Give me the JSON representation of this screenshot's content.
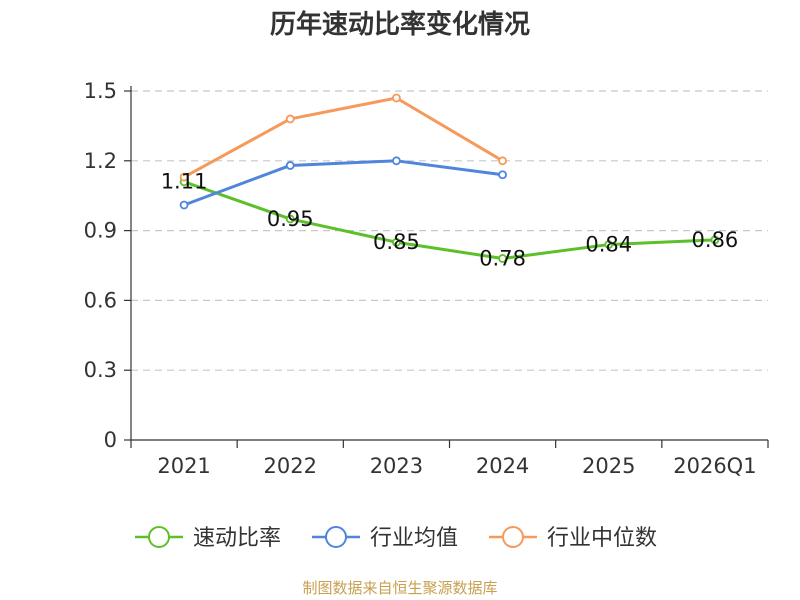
{
  "chart_data": {
    "type": "line",
    "title": "历年速动比率变化情况",
    "categories": [
      "2021",
      "2022",
      "2023",
      "2024",
      "2025",
      "2026Q1"
    ],
    "ylim": [
      0,
      1.5
    ],
    "yticks": [
      "0",
      "0.3",
      "0.6",
      "0.9",
      "1.2",
      "1.5"
    ],
    "grid": true,
    "legend_position": "bottom",
    "series": [
      {
        "name": "速动比率",
        "color": "#5cc02a",
        "values": [
          1.11,
          0.95,
          0.85,
          0.78,
          0.84,
          0.86
        ],
        "labels": [
          "1.11",
          "0.95",
          "0.85",
          "0.78",
          "0.84",
          "0.86"
        ]
      },
      {
        "name": "行业均值",
        "color": "#4f86db",
        "values": [
          1.01,
          1.18,
          1.2,
          1.14,
          null,
          null
        ]
      },
      {
        "name": "行业中位数",
        "color": "#f59a5a",
        "values": [
          1.13,
          1.38,
          1.47,
          1.2,
          null,
          null
        ]
      }
    ],
    "source": "制图数据来自恒生聚源数据库"
  }
}
